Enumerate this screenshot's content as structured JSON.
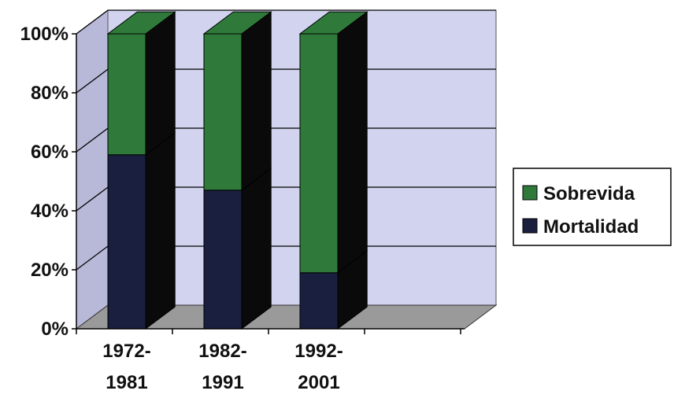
{
  "chart_data": {
    "type": "bar",
    "stacked": true,
    "three_d": true,
    "percent_axis": true,
    "categories": [
      [
        "1972-",
        "1981"
      ],
      [
        "1982-",
        "1991"
      ],
      [
        "1992-",
        "2001"
      ]
    ],
    "series": [
      {
        "name": "Mortalidad",
        "values": [
          59,
          47,
          19
        ],
        "color": "#1a1f3f"
      },
      {
        "name": "Sobrevida",
        "values": [
          41,
          53,
          81
        ],
        "color": "#2f7a3a"
      }
    ],
    "y_ticks": [
      "0%",
      "20%",
      "40%",
      "60%",
      "80%",
      "100%"
    ],
    "ylim": [
      0,
      100
    ],
    "grid": true,
    "legend_position": "right",
    "legend_order": [
      "Sobrevida",
      "Mortalidad"
    ],
    "colors": {
      "wall": "#d2d3ee",
      "floor": "#9a9a9a",
      "grid": "#000000",
      "side_dark": "#0a0a0a"
    }
  }
}
